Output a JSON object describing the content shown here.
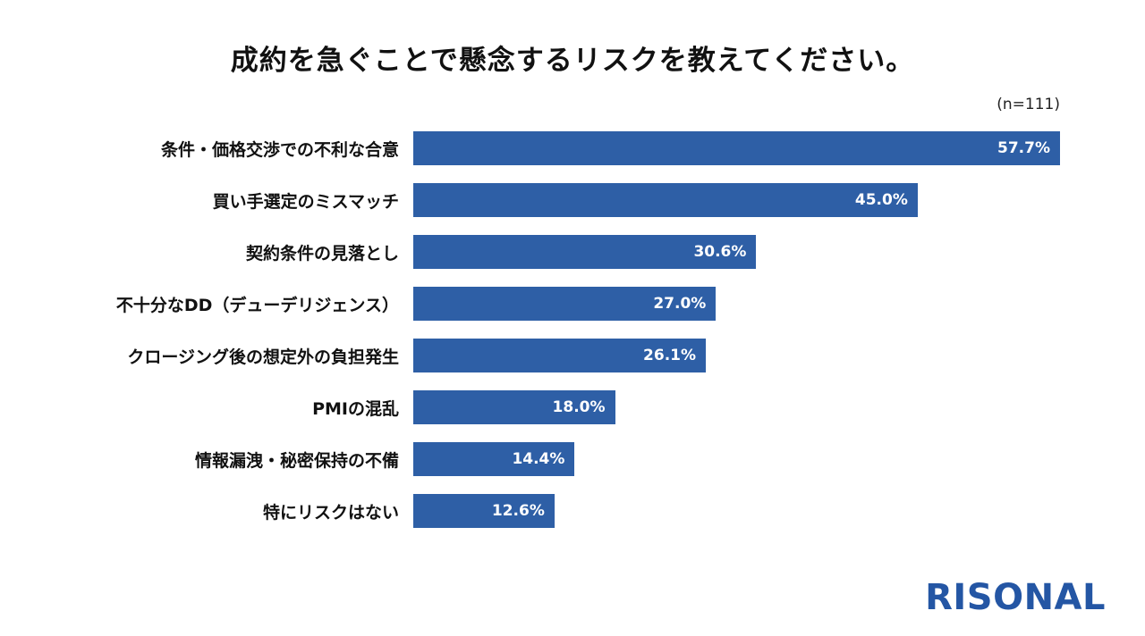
{
  "chart_data": {
    "type": "bar",
    "orientation": "horizontal",
    "title": "成約を急ぐことで懸念するリスクを教えてください。",
    "sample_size_label": "(n=111)",
    "categories": [
      "条件・価格交渉での不利な合意",
      "買い手選定のミスマッチ",
      "契約条件の見落とし",
      "不十分なDD（デューデリジェンス）",
      "クロージング後の想定外の負担発生",
      "PMIの混乱",
      "情報漏洩・秘密保持の不備",
      "特にリスクはない"
    ],
    "values": [
      57.7,
      45.0,
      30.6,
      27.0,
      26.1,
      18.0,
      14.4,
      12.6
    ],
    "value_labels": [
      "57.7%",
      "45.0%",
      "30.6%",
      "27.0%",
      "26.1%",
      "18.0%",
      "14.4%",
      "12.6%"
    ],
    "xlim": [
      0,
      57.7
    ],
    "grid": false,
    "legend": "none",
    "bar_color": "#2e5fa6",
    "value_label_color": "#ffffff",
    "label_color": "#111111"
  },
  "branding": {
    "logo_text": "RISONAL",
    "logo_color": "#2456a4"
  }
}
